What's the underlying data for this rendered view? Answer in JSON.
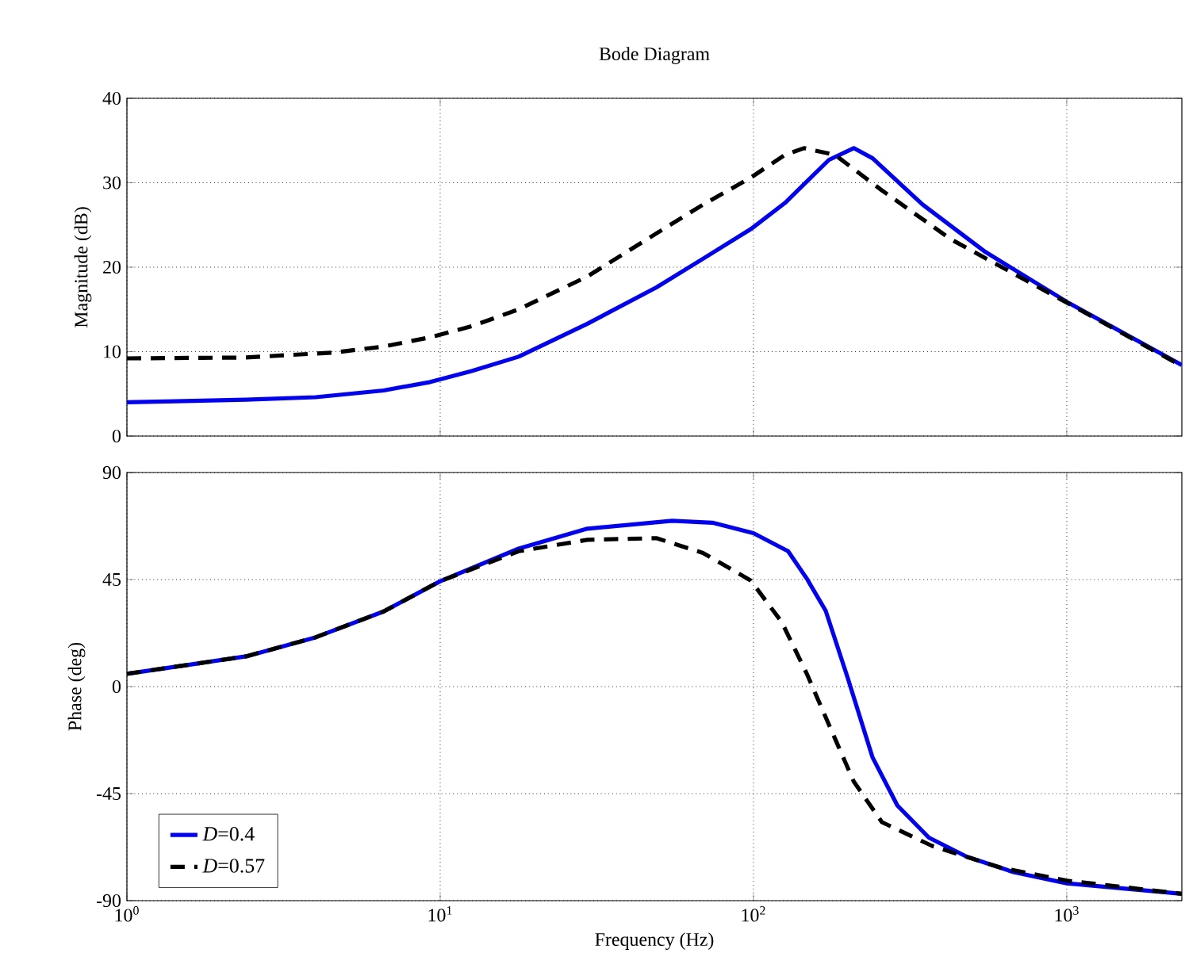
{
  "chart_data": [
    {
      "type": "line",
      "title": "Bode Diagram",
      "ylabel": "Magnitude (dB)",
      "log": "x",
      "grid": true,
      "tick_labels": "y",
      "xlim": [
        1,
        2330
      ],
      "ylim": [
        0,
        40
      ],
      "yticks": [
        0,
        10,
        20,
        30,
        40
      ],
      "xticks": [
        {
          "value": 1,
          "label": null
        },
        {
          "value": 10,
          "label": null
        },
        {
          "value": 100,
          "label": null
        },
        {
          "value": 1000,
          "label": null
        }
      ],
      "series": [
        {
          "color": "#0000ff",
          "line_style": "solid",
          "x": [
            1,
            2.4,
            4,
            6.6,
            9.3,
            12.6,
            17.8,
            29.5,
            49,
            69,
            98,
            126,
            174,
            209,
            240,
            347,
            550,
            1000,
            2330
          ],
          "values": [
            4.0,
            4.3,
            4.6,
            5.4,
            6.4,
            7.7,
            9.4,
            13.3,
            17.6,
            21.0,
            24.5,
            27.6,
            32.7,
            34.1,
            32.9,
            27.4,
            21.8,
            15.9,
            8.4
          ]
        },
        {
          "color": "#000000",
          "line_style": "dashed",
          "x": [
            1,
            2.4,
            4.6,
            6.6,
            9.3,
            12.6,
            17.8,
            29.5,
            49,
            69,
            98,
            126,
            145,
            182,
            257,
            427,
            1000,
            2330
          ],
          "values": [
            9.2,
            9.3,
            9.9,
            10.6,
            11.7,
            13.0,
            15.0,
            18.9,
            24.0,
            27.4,
            30.6,
            33.3,
            34.1,
            33.3,
            29.1,
            23.3,
            15.8,
            8.3
          ]
        }
      ]
    },
    {
      "type": "line",
      "xlabel": "Frequency  (Hz)",
      "ylabel": "Phase (deg)",
      "log": "x",
      "grid": true,
      "legend": "bottom left",
      "xlim": [
        1,
        2330
      ],
      "ylim": [
        -90,
        90
      ],
      "yticks": [
        -90,
        -45,
        0,
        45,
        90
      ],
      "xticks": [
        {
          "value": 1,
          "label": "10$^{0}$"
        },
        {
          "value": 10,
          "label": "10$^{1}$"
        },
        {
          "value": 100,
          "label": "10$^{2}$"
        },
        {
          "value": 1000,
          "label": "10$^{3}$"
        }
      ],
      "series": [
        {
          "name": "*D*=0.4",
          "color": "#0000ff",
          "line_style": "solid",
          "x": [
            1,
            1.7,
            2.4,
            4,
            6.6,
            10,
            17.8,
            29.5,
            55,
            74,
            100,
            129,
            148,
            170,
            200,
            240,
            288,
            363,
            479,
            676,
            1000,
            2330
          ],
          "values": [
            5.4,
            9.8,
            12.7,
            20.7,
            31.6,
            44.3,
            58,
            66.4,
            69.7,
            68.9,
            64.5,
            56.9,
            45.4,
            31.9,
            3.6,
            -29.8,
            -50,
            -63.5,
            -71.5,
            -78,
            -82.7,
            -87.1
          ]
        },
        {
          "name": "*D*=0.57",
          "color": "#000000",
          "line_style": "dashed",
          "x": [
            1,
            1.7,
            2.4,
            4,
            6.6,
            10,
            17.8,
            29.5,
            49,
            69,
            98,
            123,
            148,
            182,
            209,
            257,
            372,
            617,
            1000,
            2330
          ],
          "values": [
            5.4,
            9.8,
            12.7,
            20.7,
            31.6,
            44.3,
            56.9,
            61.7,
            62.4,
            56.2,
            44.6,
            27.2,
            5.4,
            -21.8,
            -39.9,
            -57,
            -67,
            -76.2,
            -81.6,
            -87.1
          ]
        }
      ]
    }
  ]
}
